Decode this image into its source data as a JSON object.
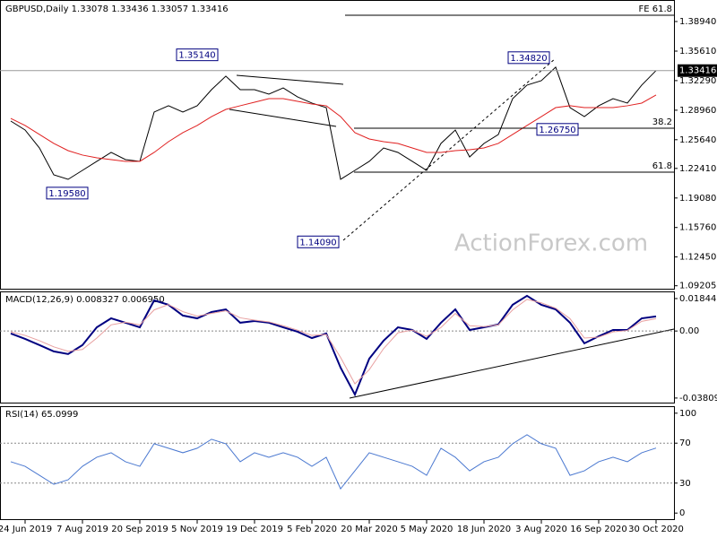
{
  "chart_data": [
    {
      "type": "line",
      "title": "GBPUSD,Daily  1.33078 1.33436 1.33057 1.33416",
      "watermark": "ActionForex.com",
      "categories": [
        null,
        "24 Jun 2019",
        null,
        null,
        null,
        "7 Aug 2019",
        null,
        null,
        null,
        "20 Sep 2019",
        null,
        null,
        null,
        "5 Nov 2019",
        null,
        null,
        null,
        "19 Dec 2019",
        null,
        null,
        null,
        "5 Feb 2020",
        null,
        null,
        null,
        "20 Mar 2020",
        null,
        null,
        null,
        "5 May 2020",
        null,
        null,
        null,
        "18 Jun 2020",
        null,
        null,
        null,
        "3 Aug 2020",
        null,
        null,
        null,
        "16 Sep 2020",
        null,
        null,
        null,
        "30 Oct 2020"
      ],
      "series": [
        {
          "color": "#000000",
          "values": [
            1.2774,
            1.2673,
            1.2471,
            1.2169,
            1.2118,
            1.2219,
            1.232,
            1.2421,
            1.234,
            1.232,
            1.2875,
            1.2946,
            1.2875,
            1.2946,
            1.3127,
            1.3279,
            1.3127,
            1.3127,
            1.3077,
            1.3147,
            1.3046,
            1.2976,
            1.2925,
            1.2118,
            1.2219,
            1.232,
            1.2471,
            1.2421,
            1.232,
            1.2219,
            1.2522,
            1.2673,
            1.237,
            1.2522,
            1.2622,
            1.3026,
            1.3178,
            1.3228,
            1.338,
            1.2925,
            1.2824,
            1.2946,
            1.3026,
            1.2976,
            1.3178,
            1.3342
          ]
        },
        {
          "color": "#e02020",
          "values": [
            1.2804,
            1.2724,
            1.2623,
            1.2522,
            1.2441,
            1.2391,
            1.236,
            1.234,
            1.232,
            1.232,
            1.2421,
            1.2542,
            1.2643,
            1.2724,
            1.2824,
            1.2905,
            1.2946,
            1.2986,
            1.3026,
            1.3026,
            1.2996,
            1.2966,
            1.2946,
            1.2824,
            1.2643,
            1.2572,
            1.2542,
            1.2522,
            1.2471,
            1.2421,
            1.2421,
            1.2441,
            1.2451,
            1.2471,
            1.2522,
            1.2623,
            1.2724,
            1.2824,
            1.2925,
            1.2946,
            1.2925,
            1.2925,
            1.2925,
            1.2946,
            1.2976,
            1.3067
          ]
        }
      ],
      "ylim": [
        1.0877,
        1.4136
      ],
      "yticks": [
        {
          "value": 1.3894,
          "label": "1.38940"
        },
        {
          "value": 1.3561,
          "label": "1.35610"
        },
        {
          "value": 1.3229,
          "label": "1.32290"
        },
        {
          "value": 1.2896,
          "label": "1.28960"
        },
        {
          "value": 1.2564,
          "label": "1.25640"
        },
        {
          "value": 1.2241,
          "label": "1.22410"
        },
        {
          "value": 1.1908,
          "label": "1.19080"
        },
        {
          "value": 1.1576,
          "label": "1.15760"
        },
        {
          "value": 1.1245,
          "label": "1.12450"
        },
        1.09205
      ],
      "last_price": {
        "value": 1.33416,
        "label": "1.33416"
      },
      "annotations": [
        {
          "value": 1.3514,
          "label": "1.35140"
        },
        {
          "value": 1.1958,
          "label": "1.19580"
        },
        {
          "value": 1.1409,
          "label": "1.14090"
        },
        {
          "value": 1.3482,
          "label": "1.34820"
        },
        {
          "value": 1.2675,
          "label": "1.26750"
        }
      ],
      "fib_levels": [
        {
          "value": 1.3965,
          "label": "FE 61.8"
        },
        {
          "value": 1.2693,
          "label": "38.2"
        },
        {
          "value": 1.2199,
          "label": "61.8"
        }
      ]
    },
    {
      "type": "line",
      "title": "MACD(12,26,9) 0.008327 0.006950",
      "series": [
        {
          "color": "#000080",
          "values": [
            -0.0014,
            -0.0045,
            -0.008,
            -0.0116,
            -0.0131,
            -0.008,
            0.0021,
            0.0072,
            0.0047,
            0.0021,
            0.0174,
            0.0149,
            0.0088,
            0.0072,
            0.0108,
            0.0123,
            0.0047,
            0.0057,
            0.0047,
            0.0021,
            -0.0004,
            -0.004,
            -0.0014,
            -0.0208,
            -0.0361,
            -0.0157,
            -0.0055,
            0.0021,
            0.0006,
            -0.0045,
            0.0047,
            0.0123,
            0.0006,
            0.0021,
            0.0037,
            0.0149,
            0.02,
            0.0149,
            0.0123,
            0.0047,
            -0.007,
            -0.003,
            0.0006,
            0.0006,
            0.0072,
            0.0083
          ]
        },
        {
          "color": "#e8a0a0",
          "values": [
            -0.0005,
            -0.0025,
            -0.0055,
            -0.009,
            -0.0115,
            -0.0105,
            -0.004,
            0.0035,
            0.005,
            0.0035,
            0.012,
            0.015,
            0.011,
            0.0085,
            0.01,
            0.0115,
            0.0075,
            0.0062,
            0.0052,
            0.003,
            0.0005,
            -0.0025,
            -0.002,
            -0.015,
            -0.03,
            -0.022,
            -0.01,
            -0.001,
            0.0005,
            -0.003,
            0.002,
            0.01,
            0.003,
            0.0025,
            0.0035,
            0.012,
            0.018,
            0.016,
            0.013,
            0.007,
            -0.004,
            -0.0035,
            -0.0005,
            0.0003,
            0.0055,
            0.007
          ]
        }
      ],
      "ylim": [
        -0.0412,
        0.0225
      ],
      "yticks": [
        0.018442,
        {
          "value": 0,
          "label": "0.00"
        },
        -0.038095
      ],
      "ref_lines": [
        0
      ]
    },
    {
      "type": "line",
      "title": "RSI(14) 65.0999",
      "series": [
        {
          "color": "#4a78d0",
          "values": [
            51.4,
            46.8,
            37.8,
            28.8,
            33.3,
            46.8,
            55.9,
            60.4,
            51.4,
            46.8,
            69.4,
            64.9,
            60.4,
            64.9,
            73.9,
            69.4,
            51.4,
            60.4,
            55.9,
            60.4,
            55.9,
            46.8,
            55.9,
            24.3,
            42.3,
            60.4,
            55.9,
            51.4,
            46.8,
            37.8,
            64.9,
            55.9,
            42.3,
            51.4,
            55.9,
            69.4,
            78.4,
            69.4,
            64.9,
            37.8,
            42.3,
            51.4,
            55.9,
            51.4,
            60.4,
            65.1
          ]
        }
      ],
      "ylim": [
        -7,
        107
      ],
      "yticks": [
        100,
        70,
        30,
        0
      ],
      "ref_lines": [
        70,
        30
      ]
    }
  ]
}
